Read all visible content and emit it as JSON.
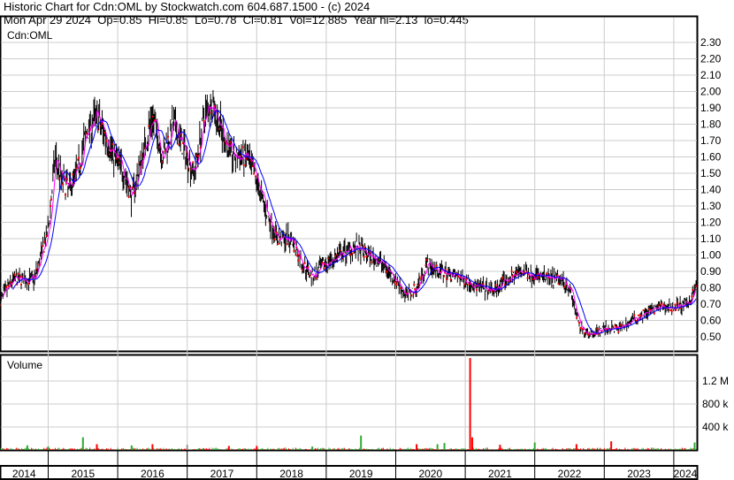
{
  "header": {
    "title": "Historic Chart for Cdn:OML by Stockwatch.com 604.687.1500 - (c) 2024",
    "quote": "Mon Apr 29 2024  Op=0.85  Hi=0.85  Lo=0.78  Cl=0.81  Vol=12,885  Year hi=2.13  lo=0.445"
  },
  "chart_data": [
    {
      "type": "line",
      "title": "Cdn:OML",
      "ylim": [
        0.45,
        2.35
      ],
      "yticks": [
        "2.30",
        "2.20",
        "2.10",
        "2.00",
        "1.90",
        "1.80",
        "1.70",
        "1.60",
        "1.50",
        "1.40",
        "1.30",
        "1.20",
        "1.10",
        "1.00",
        "0.90",
        "0.80",
        "0.70",
        "0.60",
        "0.50"
      ],
      "grid": true,
      "colors": {
        "price": "#000000",
        "ma_short": "#ff00ff",
        "ma_long": "#0000ff",
        "down_dots": "#ff0000"
      },
      "x": [
        2014.3,
        2014.5,
        2014.8,
        2014.9,
        2015.0,
        2015.1,
        2015.2,
        2015.3,
        2015.45,
        2015.55,
        2015.7,
        2015.8,
        2015.95,
        2016.1,
        2016.2,
        2016.35,
        2016.5,
        2016.65,
        2016.8,
        2016.95,
        2017.1,
        2017.25,
        2017.35,
        2017.5,
        2017.65,
        2017.85,
        2018.0,
        2018.15,
        2018.3,
        2018.5,
        2018.65,
        2018.8,
        2019.0,
        2019.2,
        2019.4,
        2019.6,
        2019.8,
        2020.0,
        2020.15,
        2020.3,
        2020.45,
        2020.6,
        2020.8,
        2021.0,
        2021.2,
        2021.4,
        2021.6,
        2021.8,
        2022.0,
        2022.2,
        2022.4,
        2022.5,
        2022.65,
        2022.8,
        2023.0,
        2023.2,
        2023.4,
        2023.6,
        2023.8,
        2024.0,
        2024.2,
        2024.32
      ],
      "close": [
        0.72,
        0.85,
        0.85,
        1.0,
        1.15,
        1.6,
        1.45,
        1.4,
        1.55,
        1.75,
        1.85,
        1.75,
        1.6,
        1.5,
        1.35,
        1.6,
        1.85,
        1.6,
        1.8,
        1.65,
        1.5,
        1.85,
        1.95,
        1.75,
        1.6,
        1.6,
        1.45,
        1.25,
        1.1,
        1.1,
        0.95,
        0.87,
        0.95,
        1.0,
        1.05,
        1.0,
        0.95,
        0.85,
        0.75,
        0.8,
        0.95,
        0.9,
        0.88,
        0.85,
        0.8,
        0.78,
        0.85,
        0.9,
        0.88,
        0.85,
        0.85,
        0.8,
        0.55,
        0.52,
        0.55,
        0.55,
        0.6,
        0.65,
        0.68,
        0.68,
        0.7,
        0.81
      ]
    },
    {
      "type": "bar",
      "title": "Volume",
      "ylim": [
        0,
        1650000
      ],
      "yticks": [
        "1.2 M",
        "800 k",
        "400 k"
      ],
      "yticks_values": [
        1200000,
        800000,
        400000
      ],
      "grid": true,
      "colors": {
        "up": "#33aa33",
        "down": "#ff0000",
        "flat": "#999999"
      },
      "x": [
        2014.7,
        2015.0,
        2015.5,
        2015.7,
        2016.2,
        2016.5,
        2017.0,
        2017.6,
        2018.0,
        2018.8,
        2019.5,
        2020.3,
        2020.6,
        2020.7,
        2021.07,
        2021.1,
        2021.5,
        2022.0,
        2022.6,
        2023.1,
        2024.3
      ],
      "values": [
        80000,
        60000,
        220000,
        100000,
        80000,
        100000,
        90000,
        70000,
        70000,
        60000,
        250000,
        100000,
        100000,
        120000,
        1600000,
        220000,
        90000,
        130000,
        100000,
        150000,
        130000
      ],
      "direction": [
        "up",
        "up",
        "up",
        "down",
        "up",
        "down",
        "flat",
        "down",
        "down",
        "up",
        "up",
        "down",
        "up",
        "up",
        "down",
        "down",
        "down",
        "up",
        "down",
        "down",
        "up"
      ],
      "xticks": [
        "2014",
        "2015",
        "2016",
        "2017",
        "2018",
        "2019",
        "2020",
        "2021",
        "2022",
        "2023",
        "2024"
      ]
    }
  ]
}
